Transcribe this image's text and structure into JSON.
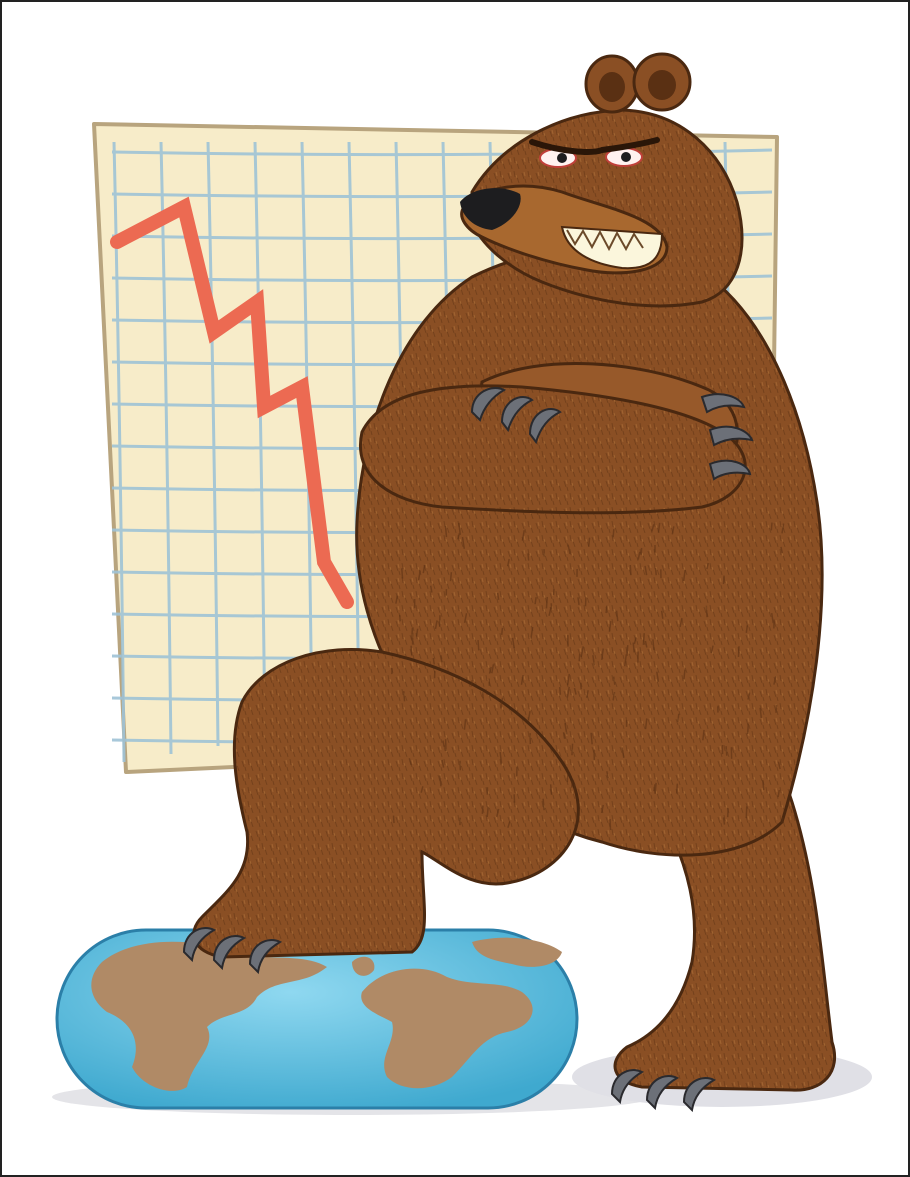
{
  "illustration": {
    "subject": "bear",
    "elements": [
      "chart-paper",
      "falling-trend-line",
      "bear",
      "globe"
    ],
    "colors": {
      "paper": "#f7ecc9",
      "paper_edge": "#b8a47e",
      "grid": "#9fc3d6",
      "trend_line": "#ec6a52",
      "fur": "#8a4f24",
      "fur_dark": "#5a3013",
      "fur_light": "#a8682f",
      "globe_ocean": "#69c7e6",
      "globe_land": "#b08a66",
      "claw": "#6c7078"
    }
  }
}
